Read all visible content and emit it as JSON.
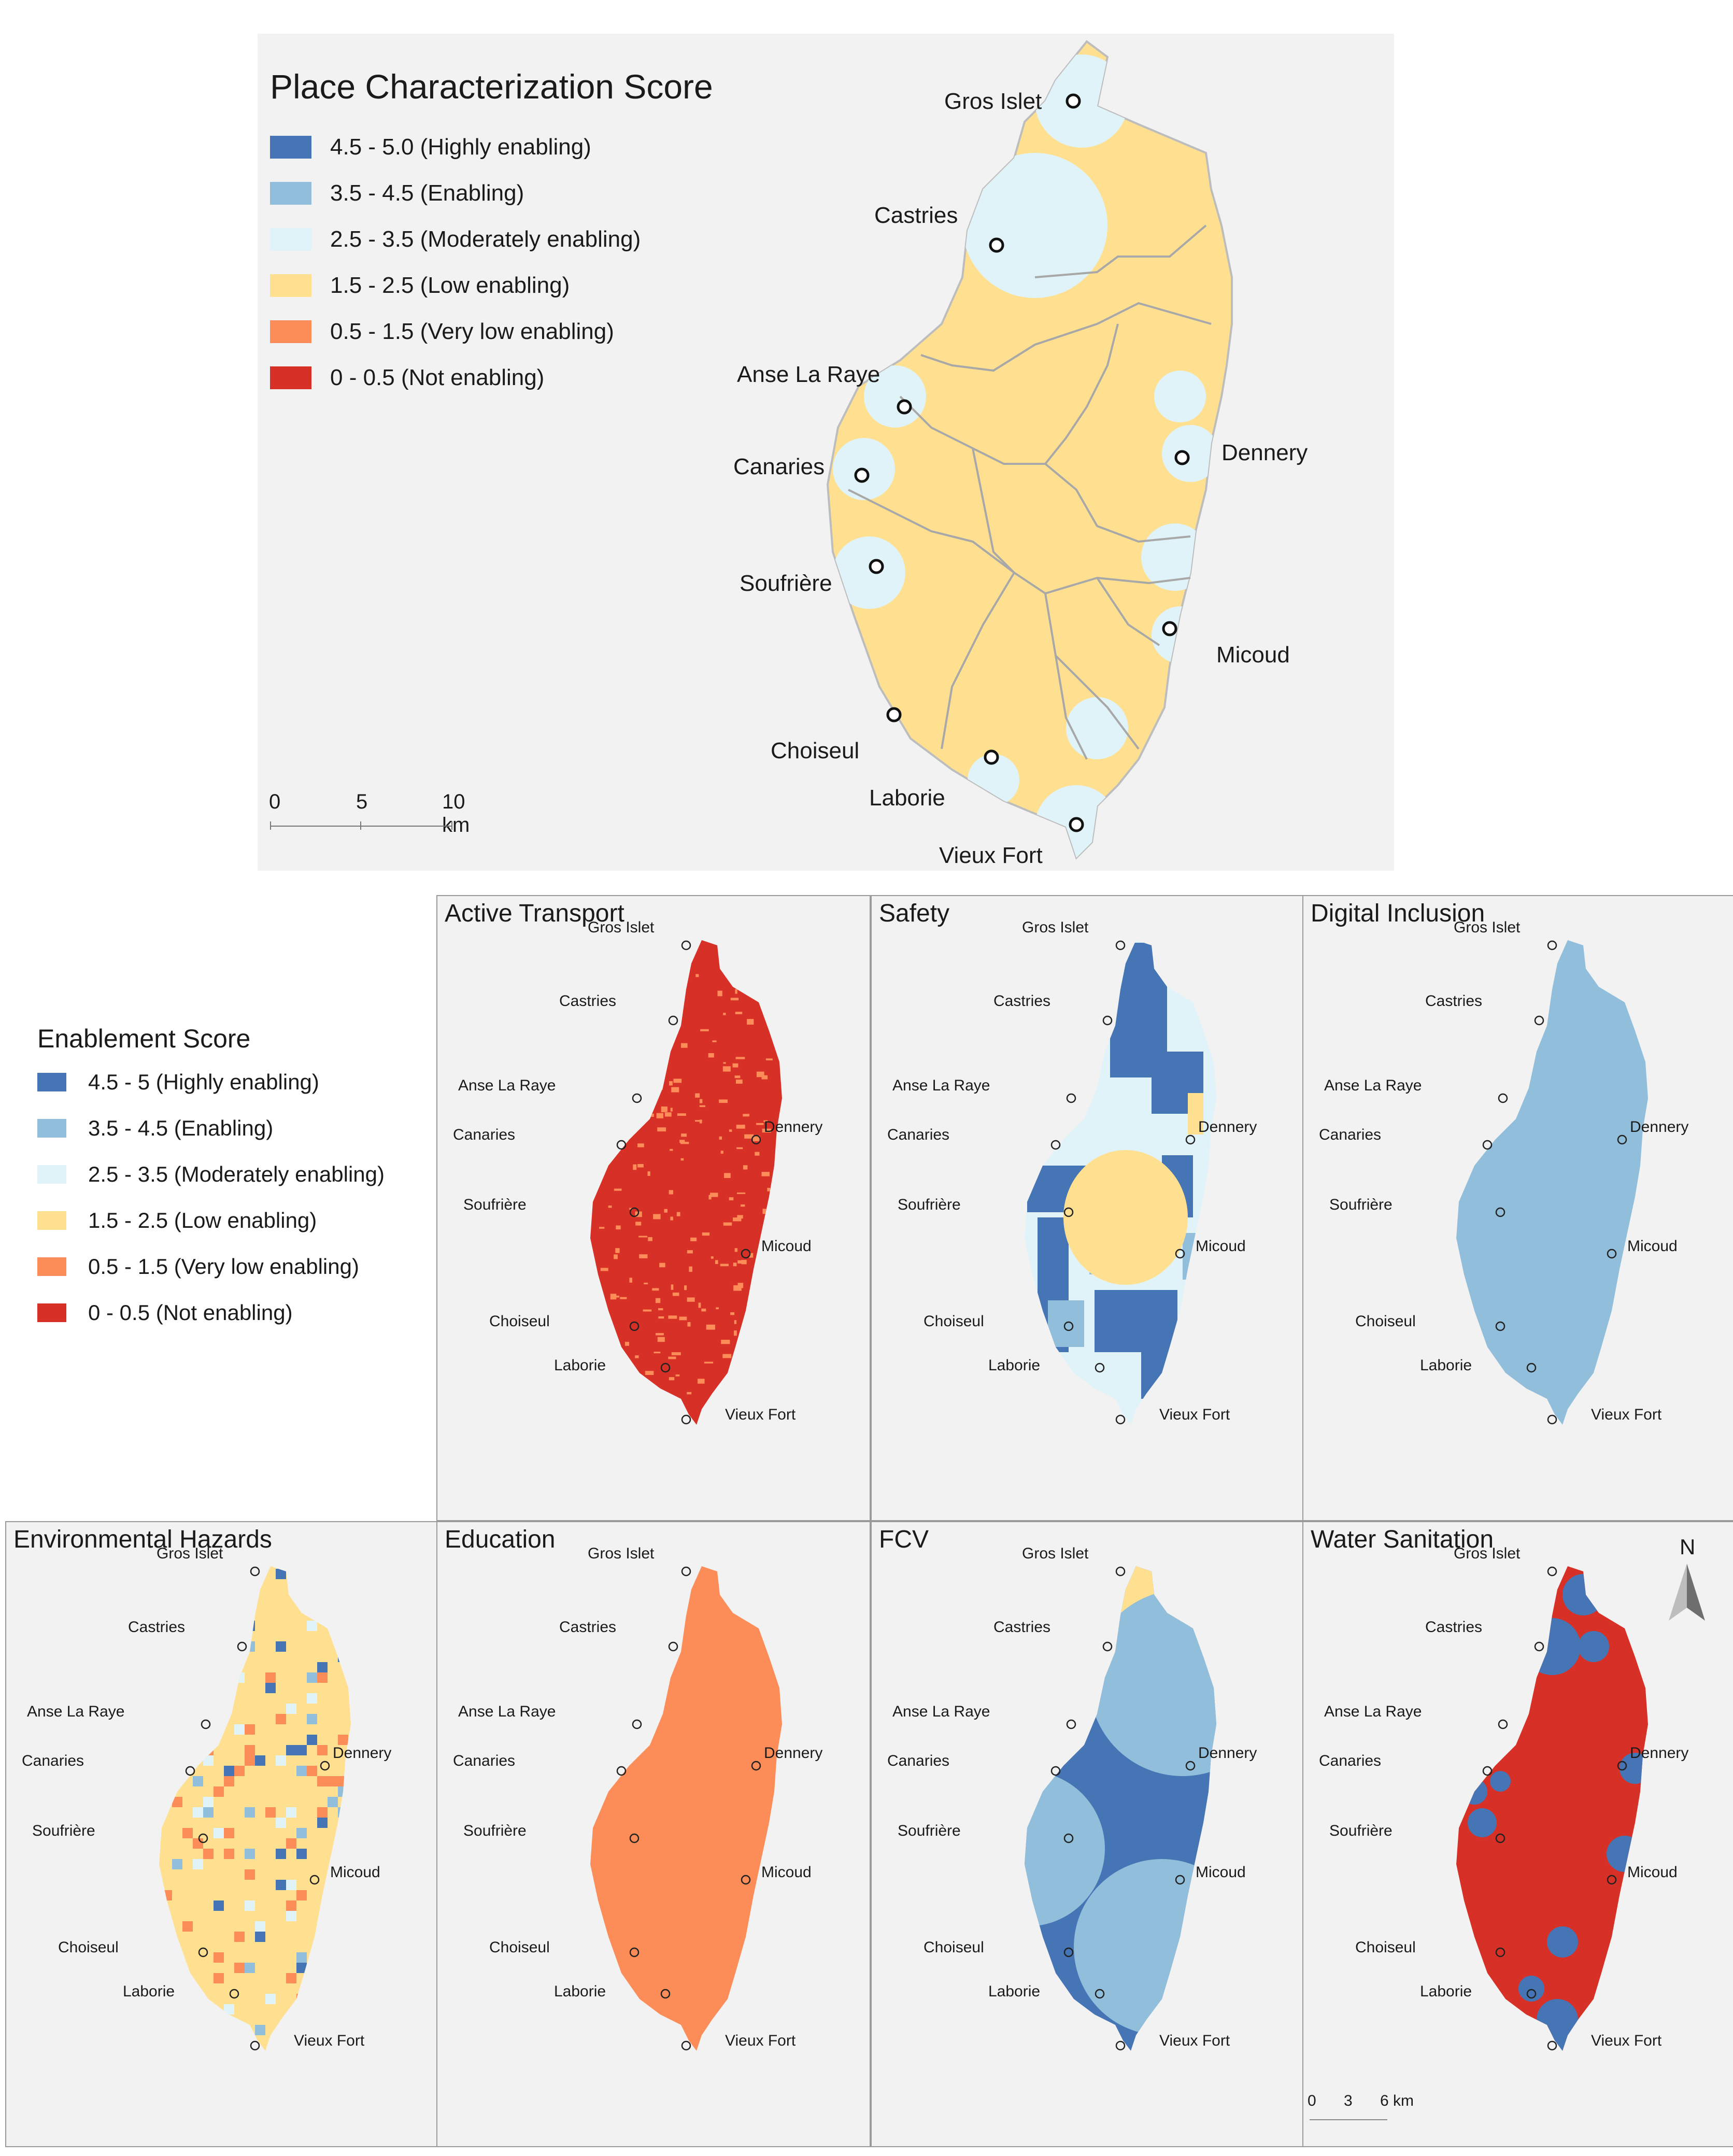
{
  "main_map": {
    "title": "Place Characterization Score",
    "legend": [
      {
        "label": "4.5 - 5.0 (Highly enabling)",
        "color": "#4575b4"
      },
      {
        "label": "3.5 - 4.5 (Enabling)",
        "color": "#91bfdb"
      },
      {
        "label": "2.5 - 3.5 (Moderately enabling)",
        "color": "#e0f3f8"
      },
      {
        "label": "1.5 - 2.5 (Low enabling)",
        "color": "#fee090"
      },
      {
        "label": "0.5 - 1.5 (Very low enabling)",
        "color": "#fc8d59"
      },
      {
        "label": "0 - 0.5 (Not enabling)",
        "color": "#d73027"
      }
    ],
    "scale": {
      "ticks": [
        "0",
        "5",
        "10 km"
      ]
    },
    "base_color": "#fee090",
    "cities": [
      "Gros Islet",
      "Castries",
      "Anse La Raye",
      "Canaries",
      "Soufrière",
      "Dennery",
      "Micoud",
      "Choiseul",
      "Laborie",
      "Vieux Fort"
    ]
  },
  "enablement_legend": {
    "title": "Enablement Score",
    "items": [
      {
        "label": "4.5 - 5 (Highly enabling)",
        "color": "#4575b4"
      },
      {
        "label": "3.5 - 4.5 (Enabling)",
        "color": "#91bfdb"
      },
      {
        "label": "2.5 - 3.5 (Moderately enabling)",
        "color": "#e0f3f8"
      },
      {
        "label": "1.5 - 2.5 (Low enabling)",
        "color": "#fee090"
      },
      {
        "label": "0.5 - 1.5 (Very low enabling)",
        "color": "#fc8d59"
      },
      {
        "label": "0 - 0.5 (Not enabling)",
        "color": "#d73027"
      }
    ]
  },
  "panels": [
    {
      "title": "Active Transport",
      "base_color": "#d73027"
    },
    {
      "title": "Safety",
      "base_color": "#e0f3f8"
    },
    {
      "title": "Digital Inclusion",
      "base_color": "#91bfdb"
    },
    {
      "title": "Environmental Hazards",
      "base_color": "#fee090"
    },
    {
      "title": "Education",
      "base_color": "#fc8d59"
    },
    {
      "title": "FCV",
      "base_color": "#4575b4"
    },
    {
      "title": "Water Sanitation",
      "base_color": "#d73027"
    }
  ],
  "north_arrow": {
    "label": "N"
  },
  "small_scale": {
    "ticks": [
      "0",
      "3",
      "6 km"
    ]
  }
}
